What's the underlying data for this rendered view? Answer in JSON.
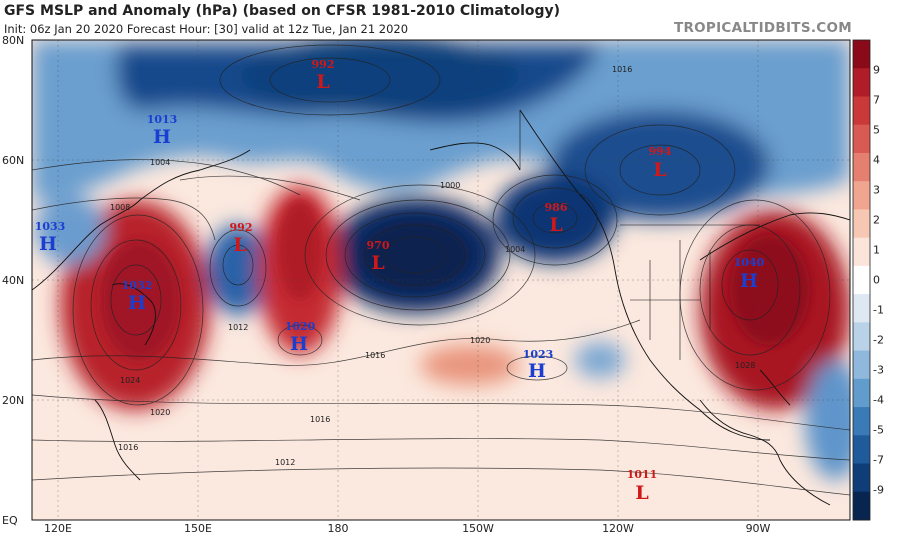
{
  "header": {
    "title": "GFS MSLP and Anomaly (hPa) (based on CFSR 1981-2010 Climatology)",
    "subtitle": "Init: 06z Jan 20 2020   Forecast Hour: [30]   valid at 12z Tue, Jan 21 2020",
    "brand": "TROPICALTIDBITS.COM"
  },
  "axes": {
    "lat_labels": [
      "80N",
      "60N",
      "40N",
      "20N",
      "EQ"
    ],
    "lon_labels": [
      "120E",
      "150E",
      "180",
      "150W",
      "120W",
      "90W"
    ]
  },
  "colorbar": {
    "labels": [
      "9",
      "7",
      "5",
      "4",
      "3",
      "2",
      "1",
      "0",
      "-1",
      "-2",
      "-3",
      "-4",
      "-5",
      "-7",
      "-9"
    ],
    "colors": [
      "#8b0a1a",
      "#b01c28",
      "#c9393a",
      "#d85a52",
      "#e57f6f",
      "#efa58f",
      "#f6c8b4",
      "#fbe5da",
      "#ffffff",
      "#dde8f2",
      "#b9d2e8",
      "#90b8dc",
      "#629ccc",
      "#3a7bb7",
      "#1f5b9a",
      "#0f3d77",
      "#08254f"
    ]
  },
  "pressure_centers": [
    {
      "type": "L",
      "value": "992",
      "color": "#d01818"
    },
    {
      "type": "H",
      "value": "1013",
      "color": "#1a3fd0"
    },
    {
      "type": "L",
      "value": "994",
      "color": "#d01818"
    },
    {
      "type": "H",
      "value": "1033",
      "color": "#1a3fd0"
    },
    {
      "type": "L",
      "value": "992",
      "color": "#d01818"
    },
    {
      "type": "L",
      "value": "970",
      "color": "#d01818"
    },
    {
      "type": "L",
      "value": "986",
      "color": "#d01818"
    },
    {
      "type": "H",
      "value": "1032",
      "color": "#1a3fd0"
    },
    {
      "type": "H",
      "value": "1040",
      "color": "#1a3fd0"
    },
    {
      "type": "H",
      "value": "1020",
      "color": "#1a3fd0"
    },
    {
      "type": "H",
      "value": "1023",
      "color": "#1a3fd0"
    },
    {
      "type": "L",
      "value": "1011",
      "color": "#d01818"
    }
  ],
  "isobar_labels": [
    "1004",
    "1008",
    "1012",
    "1016",
    "1020",
    "1024",
    "1000",
    "1028"
  ]
}
